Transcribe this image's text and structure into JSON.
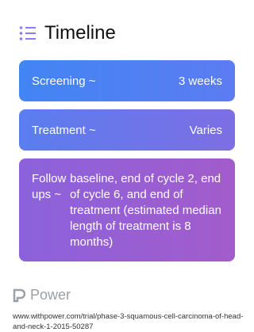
{
  "header": {
    "title": "Timeline"
  },
  "timeline": [
    {
      "label": "Screening ~",
      "value": "3 weeks"
    },
    {
      "label": "Treatment ~",
      "value": "Varies"
    },
    {
      "label": "Follow ups ~",
      "value": "baseline, end of cycle 2, end of cycle 6, and end of treatment (estimated median length of treatment is 8 months)"
    }
  ],
  "footer": {
    "brand": "Power",
    "url": "www.withpower.com/trial/phase-3-squamous-cell-carcinoma-of-head-and-neck-1-2015-50287"
  }
}
